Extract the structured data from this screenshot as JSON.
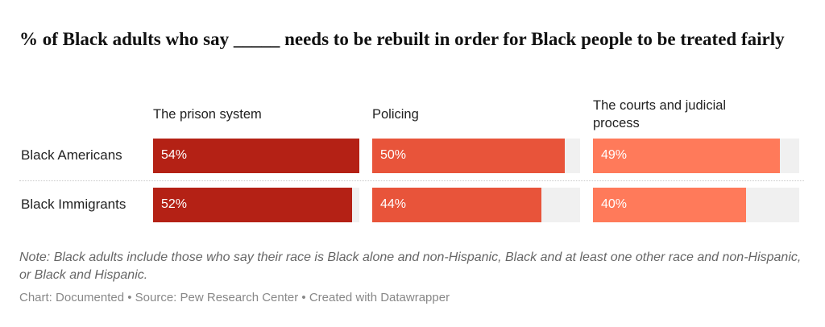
{
  "title": "% of Black adults who say _____ needs to be rebuilt in order for Black people to be treated fairly",
  "chart_data": {
    "type": "bar",
    "title": "% of Black adults who say _____ needs to be rebuilt in order for Black people to be treated fairly",
    "categories": [
      "Black Americans",
      "Black Immigrants"
    ],
    "series": [
      {
        "name": "The prison system",
        "values": [
          54,
          52
        ],
        "color": "#b42115",
        "labels": [
          "54%",
          "52%"
        ]
      },
      {
        "name": "Policing",
        "values": [
          50,
          44
        ],
        "color": "#e8543a",
        "labels": [
          "50%",
          "44%"
        ]
      },
      {
        "name": "The courts and judicial process",
        "values": [
          49,
          40
        ],
        "color": "#ff7a5a",
        "labels": [
          "49%",
          "40%"
        ]
      }
    ],
    "xlim": [
      0,
      54
    ],
    "grid": false,
    "legend": "none"
  },
  "note": "Note: Black adults include those who say their race is Black alone and non-Hispanic, Black and at least one other race and non-Hispanic, or Black and Hispanic.",
  "footer": "Chart: Documented • Source: Pew Research Center • Created with Datawrapper"
}
